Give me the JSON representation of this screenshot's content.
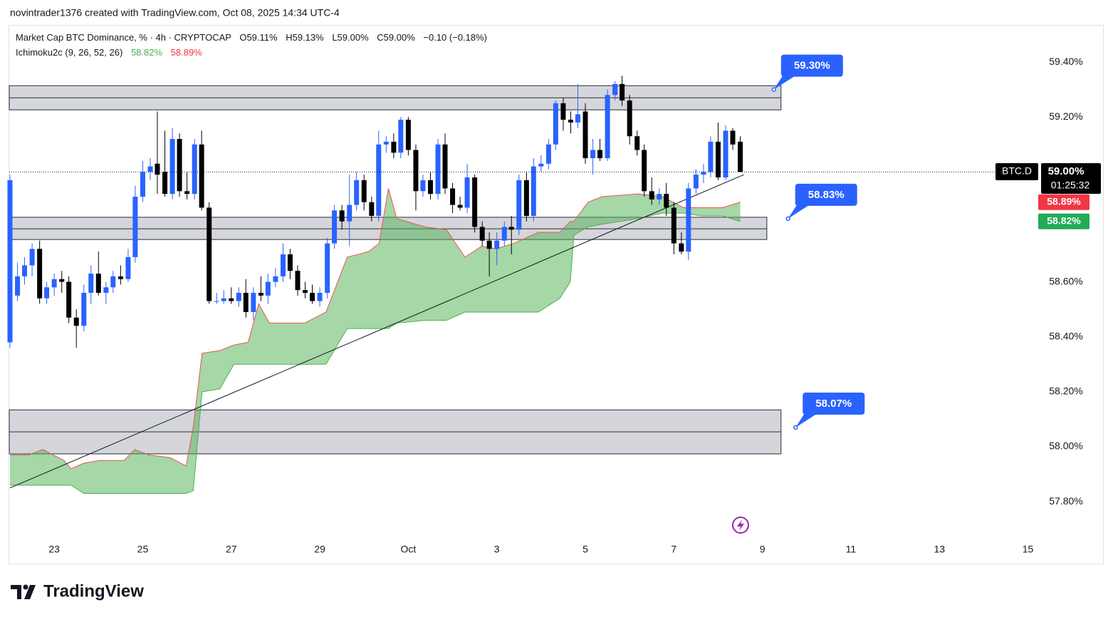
{
  "header": "novintrader1376 created with TradingView.com, Oct 08, 2025 14:34 UTC-4",
  "brand": "TradingView",
  "chart_data": {
    "type": "candlestick",
    "title": "Market Cap BTC Dominance, % · 4h · CRYPTOCAP",
    "ohlc_labels": [
      "O59.11%",
      "H59.13%",
      "L59.00%",
      "C59.00%",
      "−0.10 (−0.18%)"
    ],
    "symbol": "BTC.D",
    "last_label": "59.00%",
    "countdown": "01:25:32",
    "up_color": "#2962ff",
    "down_color": "#000000",
    "x": [
      22,
      22.17,
      22.33,
      22.5,
      22.67,
      22.83,
      23,
      23.17,
      23.33,
      23.5,
      23.67,
      23.83,
      24,
      24.17,
      24.33,
      24.5,
      24.67,
      24.83,
      25,
      25.17,
      25.33,
      25.5,
      25.67,
      25.83,
      26,
      26.17,
      26.33,
      26.5,
      26.67,
      26.83,
      27,
      27.17,
      27.33,
      27.5,
      27.67,
      27.83,
      28,
      28.17,
      28.33,
      28.5,
      28.67,
      28.83,
      29,
      29.17,
      29.33,
      29.5,
      29.67,
      29.83,
      30,
      30.17,
      30.33,
      30.5,
      30.67,
      30.83,
      31,
      31.17,
      31.33,
      31.5,
      31.67,
      31.83,
      32,
      32.17,
      32.33,
      32.5,
      32.67,
      32.83,
      33,
      33.17,
      33.33,
      33.5,
      33.67,
      33.83,
      34,
      34.17,
      34.33,
      34.5,
      34.67,
      34.83,
      35,
      35.17,
      35.33,
      35.5,
      35.67,
      35.83,
      36,
      36.17,
      36.33,
      36.5,
      36.67,
      36.83,
      37,
      37.17,
      37.33,
      37.5,
      37.67,
      37.83,
      38,
      38.17,
      38.33,
      38.5
    ],
    "open": [
      58.38,
      58.55,
      58.62,
      58.66,
      58.72,
      58.54,
      58.58,
      58.61,
      58.6,
      58.47,
      58.44,
      58.56,
      58.63,
      58.56,
      58.58,
      58.62,
      58.61,
      58.69,
      58.91,
      59.0,
      59.03,
      59.0,
      58.92,
      59.12,
      58.93,
      58.92,
      59.1,
      58.87,
      58.53,
      58.53,
      58.54,
      58.53,
      58.56,
      58.49,
      58.56,
      58.55,
      58.6,
      58.62,
      58.7,
      58.64,
      58.57,
      58.56,
      58.53,
      58.56,
      58.74,
      58.86,
      58.82,
      58.88,
      58.97,
      58.89,
      58.84,
      59.1,
      59.11,
      59.07,
      59.19,
      59.08,
      58.93,
      58.97,
      58.92,
      59.1,
      58.94,
      58.88,
      58.87,
      58.98,
      58.8,
      58.75,
      58.72,
      58.75,
      58.8,
      58.79,
      58.97,
      58.84,
      59.02,
      59.03,
      59.1,
      59.25,
      59.19,
      59.18,
      59.22,
      59.05,
      59.08,
      59.05,
      59.28,
      59.32,
      59.26,
      59.13,
      59.08,
      58.93,
      58.9,
      58.92,
      58.87,
      58.74,
      58.71,
      58.94,
      58.99,
      59.0,
      59.11,
      58.98,
      59.15,
      59.11
    ],
    "high": [
      58.99,
      58.67,
      58.69,
      58.74,
      58.75,
      58.6,
      58.63,
      58.64,
      58.62,
      58.5,
      58.59,
      58.66,
      58.71,
      58.6,
      58.64,
      58.66,
      58.72,
      58.95,
      59.04,
      59.05,
      59.22,
      59.15,
      59.16,
      59.14,
      59.0,
      59.12,
      59.15,
      58.89,
      58.56,
      58.57,
      58.58,
      58.58,
      58.61,
      58.58,
      58.62,
      58.63,
      58.65,
      58.74,
      58.72,
      58.66,
      58.6,
      58.59,
      58.58,
      58.76,
      58.88,
      58.88,
      58.99,
      59.0,
      58.99,
      58.91,
      59.15,
      59.13,
      59.14,
      59.2,
      59.2,
      59.1,
      58.99,
      59.0,
      59.12,
      59.14,
      58.96,
      58.91,
      59.03,
      58.99,
      58.82,
      58.78,
      58.78,
      58.82,
      58.84,
      58.99,
      59.0,
      59.05,
      59.06,
      59.12,
      59.26,
      59.27,
      59.22,
      59.32,
      59.25,
      59.12,
      59.12,
      59.3,
      59.33,
      59.35,
      59.28,
      59.15,
      59.1,
      58.98,
      58.94,
      58.96,
      58.89,
      58.78,
      58.96,
      59.01,
      59.03,
      59.13,
      59.18,
      59.17,
      59.16,
      59.13
    ],
    "low": [
      58.36,
      58.53,
      58.59,
      58.62,
      58.52,
      58.52,
      58.55,
      58.56,
      58.45,
      58.36,
      58.42,
      58.52,
      58.55,
      58.52,
      58.56,
      58.59,
      58.6,
      58.67,
      58.89,
      58.97,
      58.92,
      58.91,
      58.9,
      58.91,
      58.9,
      58.9,
      58.86,
      58.52,
      58.52,
      58.52,
      58.52,
      58.51,
      58.47,
      58.46,
      58.53,
      58.52,
      58.58,
      58.6,
      58.61,
      58.55,
      58.54,
      58.52,
      58.51,
      58.54,
      58.72,
      58.79,
      58.73,
      58.86,
      58.86,
      58.82,
      58.82,
      59.07,
      59.05,
      59.05,
      59.06,
      58.86,
      58.91,
      58.9,
      58.9,
      58.92,
      58.85,
      58.86,
      58.85,
      58.78,
      58.73,
      58.62,
      58.66,
      58.73,
      58.7,
      58.77,
      58.82,
      58.82,
      59.0,
      59.01,
      59.08,
      59.15,
      59.14,
      59.16,
      59.03,
      58.99,
      59.04,
      59.04,
      59.26,
      59.24,
      59.1,
      59.06,
      58.91,
      58.88,
      58.88,
      58.84,
      58.7,
      58.7,
      58.68,
      58.92,
      58.96,
      58.98,
      58.97,
      58.97,
      59.08,
      59.0
    ],
    "close": [
      58.97,
      58.62,
      58.66,
      58.72,
      58.54,
      58.58,
      58.61,
      58.6,
      58.47,
      58.44,
      58.56,
      58.63,
      58.56,
      58.58,
      58.62,
      58.61,
      58.69,
      58.91,
      59.0,
      59.02,
      58.99,
      58.92,
      59.12,
      58.93,
      58.92,
      59.1,
      58.87,
      58.53,
      58.53,
      58.54,
      58.53,
      58.56,
      58.49,
      58.56,
      58.55,
      58.6,
      58.62,
      58.7,
      58.64,
      58.57,
      58.56,
      58.53,
      58.56,
      58.74,
      58.86,
      58.82,
      58.88,
      58.97,
      58.89,
      58.84,
      59.1,
      59.11,
      59.07,
      59.19,
      59.08,
      58.93,
      58.97,
      58.92,
      59.1,
      58.94,
      58.88,
      58.87,
      58.98,
      58.8,
      58.75,
      58.72,
      58.75,
      58.8,
      58.79,
      58.97,
      58.84,
      59.02,
      59.03,
      59.1,
      59.25,
      59.19,
      59.18,
      59.21,
      59.05,
      59.08,
      59.05,
      59.28,
      59.32,
      59.26,
      59.13,
      59.08,
      58.93,
      58.9,
      58.92,
      58.87,
      58.74,
      58.71,
      58.94,
      58.99,
      59.0,
      59.11,
      58.98,
      59.15,
      59.1,
      59.0
    ],
    "xlim": [
      22,
      45.2
    ],
    "xticks": [
      {
        "value": 23,
        "label": "23"
      },
      {
        "value": 25,
        "label": "25"
      },
      {
        "value": 27,
        "label": "27"
      },
      {
        "value": 29,
        "label": "29"
      },
      {
        "value": 31,
        "label": "Oct"
      },
      {
        "value": 33,
        "label": "3"
      },
      {
        "value": 35,
        "label": "5"
      },
      {
        "value": 37,
        "label": "7"
      },
      {
        "value": 39,
        "label": "9"
      },
      {
        "value": 41,
        "label": "11"
      },
      {
        "value": 43,
        "label": "13"
      },
      {
        "value": 45,
        "label": "15"
      }
    ],
    "ylim": [
      57.668,
      59.535
    ],
    "yticks": [
      {
        "value": 59.4,
        "label": "59.40%"
      },
      {
        "value": 59.2,
        "label": "59.20%"
      },
      {
        "value": 58.6,
        "label": "58.60%"
      },
      {
        "value": 58.4,
        "label": "58.40%"
      },
      {
        "value": 58.2,
        "label": "58.20%"
      },
      {
        "value": 58.0,
        "label": "58.00%"
      },
      {
        "value": 57.8,
        "label": "57.80%"
      }
    ],
    "ichimoku": {
      "label": "Ichimoku2c (9, 26, 52, 26)",
      "fill": "rgba(76,175,80,0.5)",
      "x": [
        22,
        22.42,
        22.74,
        23.22,
        23.38,
        23.67,
        24.02,
        24.58,
        24.82,
        25.14,
        25.62,
        25.98,
        26.14,
        26.34,
        26.74,
        27.06,
        27.38,
        27.62,
        27.86,
        28.66,
        29.14,
        29.62,
        30.1,
        30.34,
        30.55,
        30.74,
        31.38,
        31.86,
        32.28,
        32.66,
        32.98,
        33.38,
        33.94,
        34.42,
        34.66,
        34.74,
        35.06,
        35.38,
        36.18,
        36.74,
        37.22,
        37.62,
        38.1,
        38.5
      ],
      "series": [
        {
          "color": "#4caf50",
          "last_label": "58.82%",
          "values": [
            57.86,
            57.86,
            57.86,
            57.86,
            57.86,
            57.83,
            57.83,
            57.83,
            57.83,
            57.83,
            57.83,
            57.83,
            57.84,
            58.2,
            58.21,
            58.3,
            58.3,
            58.3,
            58.3,
            58.3,
            58.3,
            58.43,
            58.43,
            58.43,
            58.43,
            58.45,
            58.46,
            58.46,
            58.49,
            58.49,
            58.49,
            58.49,
            58.49,
            58.54,
            58.6,
            58.77,
            58.8,
            58.81,
            58.83,
            58.85,
            58.85,
            58.84,
            58.84,
            58.82
          ]
        },
        {
          "color": "#ef5350",
          "last_label": "58.89%",
          "values": [
            57.97,
            57.97,
            57.99,
            57.95,
            57.92,
            57.94,
            57.95,
            57.95,
            57.99,
            57.97,
            57.96,
            57.93,
            58.07,
            58.34,
            58.35,
            58.37,
            58.38,
            58.52,
            58.45,
            58.45,
            58.49,
            58.69,
            58.71,
            58.74,
            58.94,
            58.83,
            58.8,
            58.79,
            58.69,
            58.73,
            58.72,
            58.74,
            58.78,
            58.78,
            58.82,
            58.82,
            58.89,
            58.91,
            58.92,
            58.91,
            58.87,
            58.87,
            58.87,
            58.89
          ]
        }
      ]
    },
    "zones": [
      {
        "range": [
          59.226,
          59.314
        ],
        "mid": 59.27,
        "x_end": 39.42
      },
      {
        "range": [
          58.754,
          58.835
        ],
        "mid": 58.793,
        "x_end": 39.1
      },
      {
        "range": [
          57.974,
          58.134
        ],
        "mid": 58.054,
        "x_end": 39.42
      }
    ],
    "trendline": {
      "x": [
        22,
        38.58
      ],
      "values": [
        57.85,
        58.99
      ]
    },
    "callouts": [
      {
        "label": "59.30%",
        "value": 59.3,
        "x": 39.26
      },
      {
        "label": "58.83%",
        "value": 58.83,
        "x": 39.58
      },
      {
        "label": "58.07%",
        "value": 58.07,
        "x": 39.75
      }
    ]
  }
}
